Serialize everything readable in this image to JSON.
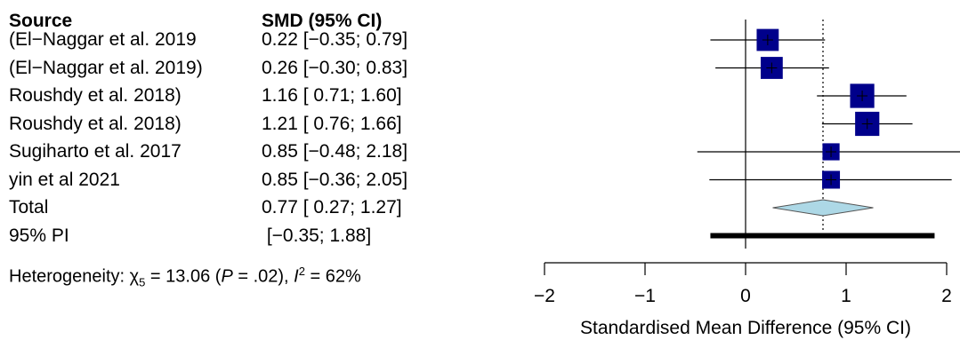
{
  "chart_data": {
    "type": "forest",
    "headers": {
      "source": "Source",
      "estimate": "SMD (95% CI)"
    },
    "studies": [
      {
        "label": "(El−Naggar et al. 2019",
        "ci_text": "0.22 [−0.35; 0.79]",
        "smd": 0.22,
        "lower": -0.35,
        "upper": 0.79,
        "weight": 0.8
      },
      {
        "label": "(El−Naggar et al. 2019)",
        "ci_text": "0.26 [−0.30; 0.83]",
        "smd": 0.26,
        "lower": -0.3,
        "upper": 0.83,
        "weight": 0.8
      },
      {
        "label": "Roushdy et al. 2018)",
        "ci_text": "1.16 [ 0.71; 1.60]",
        "smd": 1.16,
        "lower": 0.71,
        "upper": 1.6,
        "weight": 0.95
      },
      {
        "label": "Roushdy et al. 2018)",
        "ci_text": "1.21 [ 0.76; 1.66]",
        "smd": 1.21,
        "lower": 0.76,
        "upper": 1.66,
        "weight": 0.95
      },
      {
        "label": "Sugiharto et al. 2017",
        "ci_text": "0.85 [−0.48; 2.18]",
        "smd": 0.85,
        "lower": -0.48,
        "upper": 2.18,
        "weight": 0.45
      },
      {
        "label": "yin et al 2021",
        "ci_text": "0.85 [−0.36; 2.05]",
        "smd": 0.85,
        "lower": -0.36,
        "upper": 2.05,
        "weight": 0.5
      }
    ],
    "total": {
      "label": "Total",
      "ci_text": "0.77 [ 0.27; 1.27]",
      "smd": 0.77,
      "lower": 0.27,
      "upper": 1.27
    },
    "prediction_interval": {
      "label": "95% PI",
      "ci_text": " [−0.35; 1.88]",
      "lower": -0.35,
      "upper": 1.88
    },
    "heterogeneity": {
      "prefix": "Heterogeneity: χ",
      "df": "5",
      "mid": " = 13.06 (",
      "p_sym": "P",
      "p_val": " = .02), ",
      "i_sym": "I",
      "i_exp": "2",
      "i_val": " = 62%"
    },
    "xlabel": "Standardised Mean Difference (95% CI)",
    "xlim": [
      -2,
      2
    ],
    "ticks": [
      -2,
      -1,
      0,
      1,
      2
    ],
    "tick_labels": [
      "−2",
      "−1",
      "0",
      "1",
      "2"
    ],
    "null_line": 0,
    "colors": {
      "square": "#00008B",
      "diamond": "#ADD8E6",
      "line": "#000000"
    }
  }
}
